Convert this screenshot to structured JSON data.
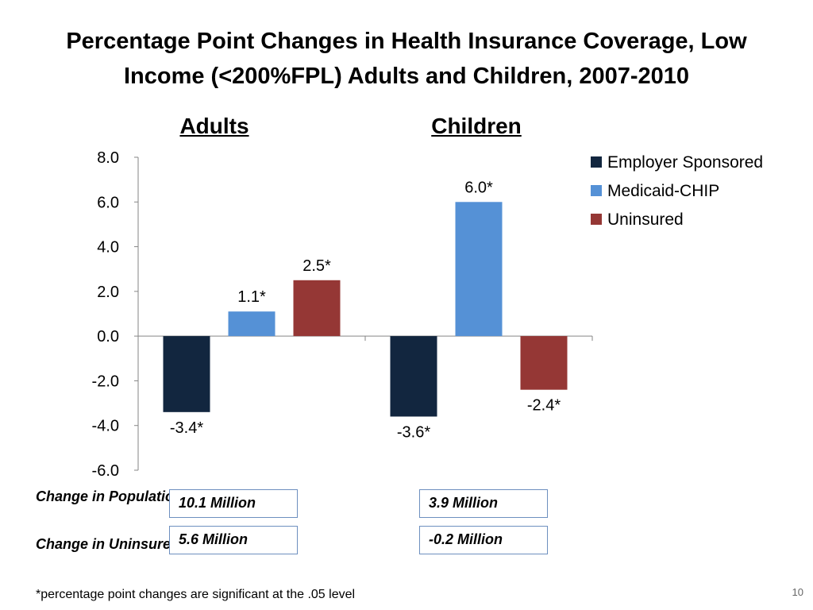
{
  "title": "Percentage Point Changes in Health Insurance Coverage, Low Income (<200%FPL) Adults and Children, 2007-2010",
  "group_headings": {
    "adults": "Adults",
    "children": "Children"
  },
  "chart_data": {
    "type": "bar",
    "title": "Percentage Point Changes in Health Insurance Coverage, Low Income (<200%FPL) Adults and Children, 2007-2010",
    "categories": [
      "Adults",
      "Children"
    ],
    "series": [
      {
        "name": "Employer Sponsored",
        "color": "#12263f",
        "values": [
          -3.4,
          -3.6
        ],
        "labels": [
          "-3.4*",
          "-3.6*"
        ]
      },
      {
        "name": "Medicaid-CHIP",
        "color": "#5591d6",
        "values": [
          1.1,
          6.0
        ],
        "labels": [
          "1.1*",
          "6.0*"
        ]
      },
      {
        "name": "Uninsured",
        "color": "#953735",
        "values": [
          2.5,
          -2.4
        ],
        "labels": [
          "2.5*",
          "-2.4*"
        ]
      }
    ],
    "ylim": [
      -6.0,
      8.0
    ],
    "yticks": [
      8.0,
      6.0,
      4.0,
      2.0,
      0.0,
      -2.0,
      -4.0,
      -6.0
    ],
    "ytick_labels": [
      "8.0",
      "6.0",
      "4.0",
      "2.0",
      "0.0",
      "-2.0",
      "-4.0",
      "-6.0"
    ],
    "xlabel": "",
    "ylabel": "",
    "grid": false,
    "legend_position": "top-right"
  },
  "summary_table": {
    "rows": [
      {
        "label": "Change in Population",
        "adults": "10.1 Million",
        "children": "3.9 Million"
      },
      {
        "label": "Change in Uninsured",
        "adults": "5.6 Million",
        "children": "-0.2 Million"
      }
    ]
  },
  "footnote": "*percentage point changes are significant at the .05 level",
  "slide_number": "10"
}
